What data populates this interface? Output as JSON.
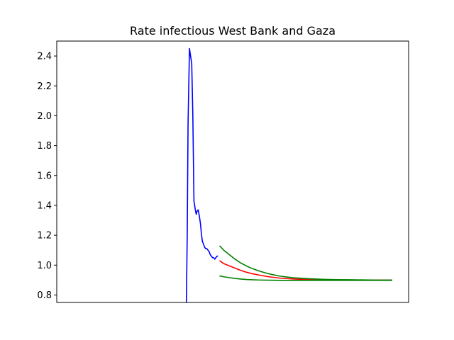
{
  "chart_data": {
    "type": "line",
    "title": "Rate infectious West Bank and Gaza",
    "xlabel": "",
    "ylabel": "",
    "x_ticks_shown": false,
    "xlim": [
      0,
      100
    ],
    "ylim": [
      0.75,
      2.5
    ],
    "yticks": [
      0.8,
      1.0,
      1.2,
      1.4,
      1.6,
      1.8,
      2.0,
      2.2,
      2.4
    ],
    "ytick_labels": [
      "0.8",
      "1.0",
      "1.2",
      "1.4",
      "1.6",
      "1.8",
      "2.0",
      "2.2",
      "2.4"
    ],
    "grid": false,
    "legend": "none",
    "series": [
      {
        "color": "#0000ff",
        "x": [
          26.7,
          27.0,
          27.3,
          27.8,
          28.2,
          28.6,
          29.0,
          29.4,
          29.8,
          30.2,
          30.5,
          30.9,
          31.3,
          31.7,
          32.1,
          32.4,
          32.8,
          33.2,
          33.6,
          34.0,
          34.4,
          34.8,
          35.2,
          35.6,
          36.0,
          36.4,
          36.8,
          37.2,
          37.6,
          38.0
        ],
        "y": [
          0.75,
          1.2,
          1.95,
          2.45,
          2.4,
          2.35,
          2.0,
          1.43,
          1.38,
          1.34,
          1.36,
          1.37,
          1.33,
          1.28,
          1.2,
          1.16,
          1.14,
          1.12,
          1.11,
          1.11,
          1.1,
          1.09,
          1.07,
          1.06,
          1.05,
          1.05,
          1.04,
          1.05,
          1.06,
          1.06
        ]
      },
      {
        "color": "#ff0000",
        "x": [
          38.5,
          40,
          42,
          44,
          46,
          48,
          50,
          53,
          56,
          60,
          65,
          70,
          75,
          80,
          85,
          90,
          95,
          100
        ],
        "y": [
          1.03,
          1.01,
          0.995,
          0.98,
          0.965,
          0.953,
          0.943,
          0.932,
          0.922,
          0.913,
          0.907,
          0.903,
          0.902,
          0.901,
          0.9,
          0.9,
          0.9,
          0.9
        ]
      },
      {
        "color": "#008000",
        "x": [
          38.5,
          40,
          42,
          44,
          46,
          48,
          50,
          53,
          56,
          60,
          65,
          70,
          75,
          80,
          85,
          90,
          95,
          100
        ],
        "y": [
          1.13,
          1.1,
          1.07,
          1.04,
          1.015,
          0.995,
          0.978,
          0.958,
          0.942,
          0.926,
          0.915,
          0.909,
          0.905,
          0.903,
          0.902,
          0.901,
          0.9,
          0.9
        ]
      },
      {
        "color": "#008000",
        "x": [
          38.5,
          40,
          42,
          44,
          46,
          48,
          50,
          53,
          56,
          60,
          65,
          70,
          75,
          80,
          85,
          90,
          95,
          100
        ],
        "y": [
          0.928,
          0.922,
          0.916,
          0.911,
          0.907,
          0.904,
          0.902,
          0.9,
          0.899,
          0.898,
          0.898,
          0.898,
          0.898,
          0.898,
          0.898,
          0.898,
          0.898,
          0.898
        ]
      }
    ]
  }
}
